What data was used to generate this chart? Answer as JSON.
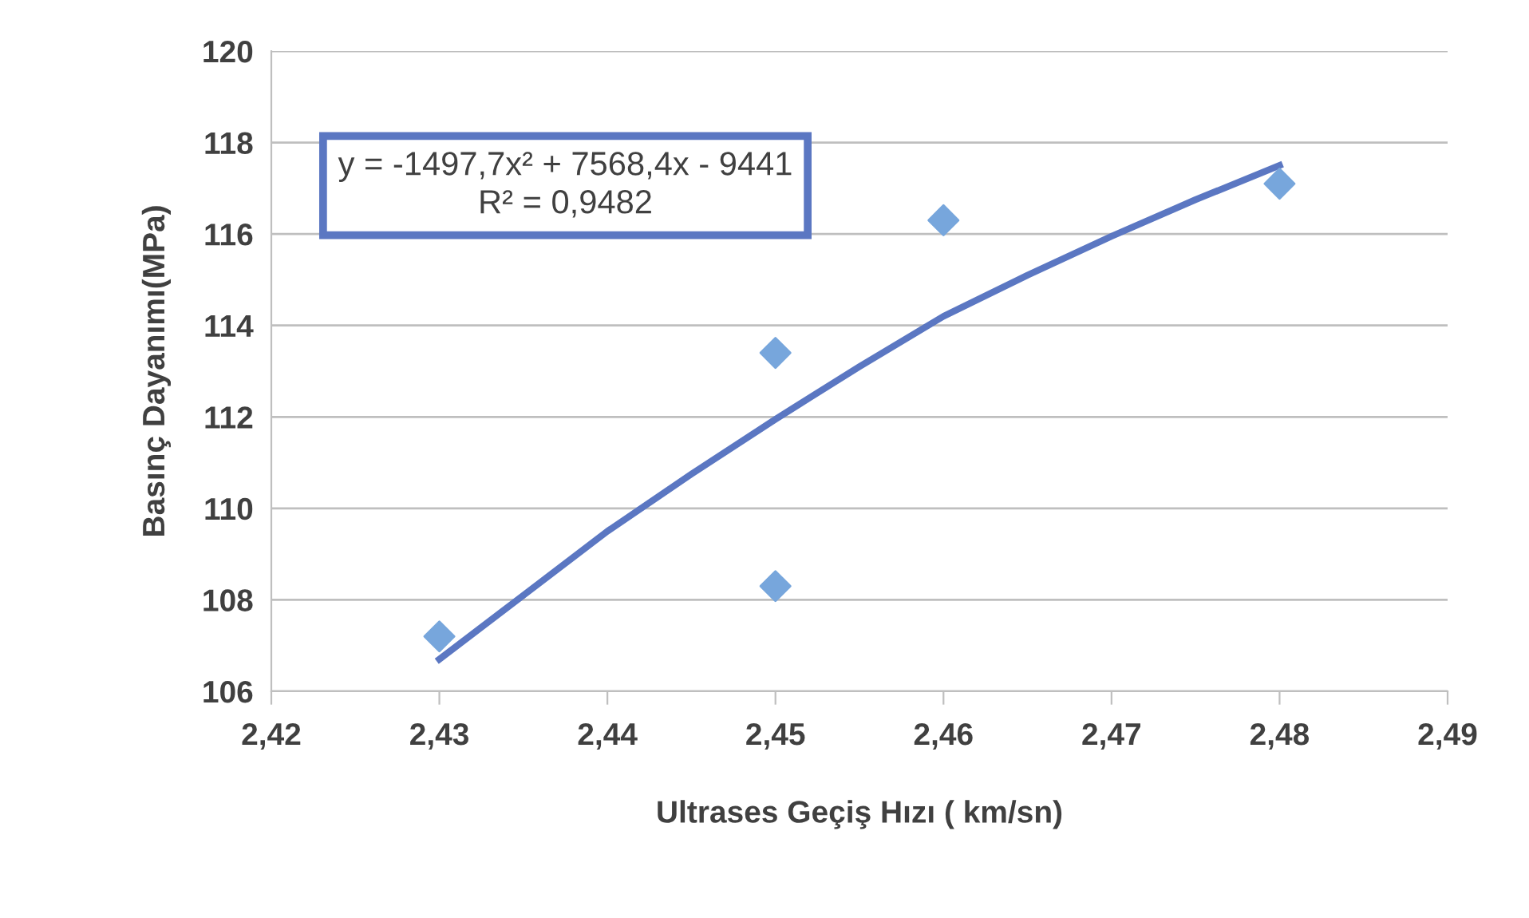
{
  "chart_data": {
    "type": "scatter",
    "xlabel": "Ultrases Geçiş Hızı ( km/sn)",
    "ylabel": "Basınç Dayanımı(MPa)",
    "xlim": [
      2.42,
      2.49
    ],
    "xticks": [
      {
        "value": 2.42,
        "label": "2,42"
      },
      {
        "value": 2.43,
        "label": "2,43"
      },
      {
        "value": 2.44,
        "label": "2,44"
      },
      {
        "value": 2.45,
        "label": "2,45"
      },
      {
        "value": 2.46,
        "label": "2,46"
      },
      {
        "value": 2.47,
        "label": "2,47"
      },
      {
        "value": 2.48,
        "label": "2,48"
      },
      {
        "value": 2.49,
        "label": "2,49"
      }
    ],
    "ylim": [
      106,
      120
    ],
    "yticks": [
      106,
      108,
      110,
      112,
      114,
      116,
      118,
      120
    ],
    "grid": "y",
    "annotations": [
      "y = -1497,7x² + 7568,4x - 9441\nR² = 0,9482"
    ],
    "series": [
      {
        "color": "#77a6dc",
        "marker": "diamond",
        "x": [
          2.43,
          2.45,
          2.45,
          2.46,
          2.48
        ],
        "values": [
          107.2,
          113.4,
          108.3,
          116.3,
          117.1
        ]
      },
      {
        "type": "line",
        "color": "#5b77c2",
        "marker": "none",
        "line_style": "solid",
        "x": [
          2.43,
          2.435,
          2.44,
          2.445,
          2.45,
          2.455,
          2.46,
          2.465,
          2.47,
          2.475,
          2.48
        ],
        "values": [
          106.7,
          108.1,
          109.5,
          110.75,
          111.95,
          113.1,
          114.2,
          115.1,
          115.95,
          116.75,
          117.5
        ]
      }
    ]
  }
}
